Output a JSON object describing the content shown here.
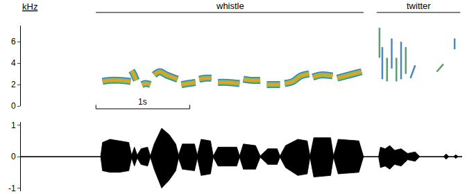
{
  "chart_data": {
    "type": "spectrogram",
    "unit_label": "kHz",
    "tick_labels": "y",
    "xlim": [
      0,
      4.7
    ],
    "ylim": [
      0,
      7.5
    ],
    "yticks": [
      0,
      2,
      4,
      6
    ],
    "y2lim": [
      -1.1,
      1.1
    ],
    "y2ticks": [
      -1,
      0,
      1
    ],
    "sections": [
      {
        "text": "whistle",
        "t": [
          0.8,
          3.65
        ]
      },
      {
        "text": "twitter",
        "t": [
          3.79,
          4.68
        ]
      }
    ],
    "scale_bar": {
      "text": "1s",
      "t": [
        0.8,
        1.8
      ]
    },
    "syllables": [
      {
        "t": [
          0.87,
          0.95,
          1.05,
          1.17
        ],
        "f": [
          2.3,
          2.4,
          2.4,
          2.3
        ]
      },
      {
        "t": [
          1.18,
          1.2,
          1.23
        ],
        "f": [
          3.3,
          3.0,
          2.4
        ]
      },
      {
        "t": [
          1.29,
          1.33,
          1.38
        ],
        "f": [
          2.0,
          2.1,
          2.0
        ]
      },
      {
        "t": [
          1.42,
          1.48,
          1.55,
          1.67
        ],
        "f": [
          2.9,
          3.2,
          2.9,
          2.5
        ]
      },
      {
        "t": [
          1.71,
          1.78,
          1.86
        ],
        "f": [
          2.0,
          2.1,
          2.2
        ]
      },
      {
        "t": [
          1.9,
          1.97,
          2.03
        ],
        "f": [
          2.5,
          2.6,
          2.6
        ]
      },
      {
        "t": [
          2.1,
          2.2,
          2.33
        ],
        "f": [
          2.2,
          2.2,
          2.1
        ]
      },
      {
        "t": [
          2.37,
          2.45,
          2.55
        ],
        "f": [
          2.5,
          2.4,
          2.4
        ]
      },
      {
        "t": [
          2.62,
          2.68,
          2.76
        ],
        "f": [
          2.0,
          2.0,
          2.0
        ]
      },
      {
        "t": [
          2.81,
          2.9,
          2.98,
          3.07
        ],
        "f": [
          2.1,
          2.3,
          2.8,
          3.0
        ]
      },
      {
        "t": [
          3.11,
          3.2,
          3.32
        ],
        "f": [
          2.7,
          2.9,
          2.8
        ]
      },
      {
        "t": [
          3.37,
          3.5,
          3.63
        ],
        "f": [
          2.6,
          2.9,
          3.2
        ]
      }
    ],
    "twitter": [
      {
        "t": [
          3.82,
          3.82
        ],
        "f": [
          4.5,
          7.3
        ]
      },
      {
        "t": [
          3.85,
          3.85
        ],
        "f": [
          2.5,
          5.5
        ]
      },
      {
        "t": [
          3.9,
          3.9
        ],
        "f": [
          2.3,
          4.5
        ]
      },
      {
        "t": [
          3.95,
          3.95
        ],
        "f": [
          3.5,
          6.3
        ]
      },
      {
        "t": [
          4.0,
          4.0
        ],
        "f": [
          2.3,
          4.5
        ]
      },
      {
        "t": [
          4.05,
          4.05
        ],
        "f": [
          2.5,
          6.0
        ]
      },
      {
        "t": [
          4.1,
          4.1
        ],
        "f": [
          3.0,
          5.5
        ]
      },
      {
        "t": [
          4.15,
          4.2
        ],
        "f": [
          2.6,
          3.8
        ]
      },
      {
        "t": [
          4.43,
          4.5
        ],
        "f": [
          3.2,
          3.9
        ]
      },
      {
        "t": [
          4.62,
          4.62
        ],
        "f": [
          5.3,
          6.3
        ]
      }
    ],
    "waveform": {
      "t": [
        0,
        0.85,
        0.87,
        0.95,
        1.05,
        1.15,
        1.18,
        1.21,
        1.24,
        1.28,
        1.35,
        1.38,
        1.42,
        1.5,
        1.58,
        1.65,
        1.68,
        1.72,
        1.85,
        1.88,
        1.92,
        2.02,
        2.05,
        2.1,
        2.3,
        2.33,
        2.37,
        2.5,
        2.55,
        2.63,
        2.73,
        2.76,
        2.82,
        2.95,
        3.05,
        3.08,
        3.12,
        3.3,
        3.33,
        3.38,
        3.6,
        3.65,
        3.81,
        3.83,
        3.88,
        3.93,
        3.98,
        4.05,
        4.12,
        4.2,
        4.25,
        4.5,
        4.53,
        4.56,
        4.61,
        4.63,
        4.66,
        4.7
      ],
      "upper": [
        0,
        0,
        0.45,
        0.55,
        0.5,
        0.45,
        0.05,
        0.3,
        0.05,
        0.25,
        0.3,
        0.02,
        0.4,
        0.9,
        0.7,
        0.4,
        0.05,
        0.4,
        0.4,
        0.05,
        0.55,
        0.5,
        0.02,
        0.3,
        0.3,
        0.02,
        0.4,
        0.35,
        0.02,
        0.25,
        0.25,
        0.02,
        0.35,
        0.55,
        0.5,
        0.02,
        0.6,
        0.6,
        0.02,
        0.55,
        0.5,
        0,
        0,
        0.3,
        0.25,
        0.35,
        0.2,
        0.25,
        0.1,
        0.15,
        0,
        0,
        0.08,
        0,
        0,
        0.06,
        0,
        0
      ],
      "lower": [
        0,
        0,
        -0.45,
        -0.5,
        -0.5,
        -0.45,
        -0.05,
        -0.3,
        -0.05,
        -0.25,
        -0.3,
        -0.02,
        -0.4,
        -1.0,
        -0.75,
        -0.45,
        -0.05,
        -0.4,
        -0.45,
        -0.05,
        -0.6,
        -0.55,
        -0.02,
        -0.3,
        -0.3,
        -0.02,
        -0.4,
        -0.4,
        -0.02,
        -0.25,
        -0.25,
        -0.02,
        -0.35,
        -0.6,
        -0.55,
        -0.02,
        -0.65,
        -0.6,
        -0.02,
        -0.55,
        -0.5,
        0,
        0,
        -0.35,
        -0.3,
        -0.4,
        -0.25,
        -0.3,
        -0.1,
        -0.15,
        0,
        0,
        -0.08,
        0,
        0,
        -0.06,
        0,
        0
      ]
    }
  }
}
